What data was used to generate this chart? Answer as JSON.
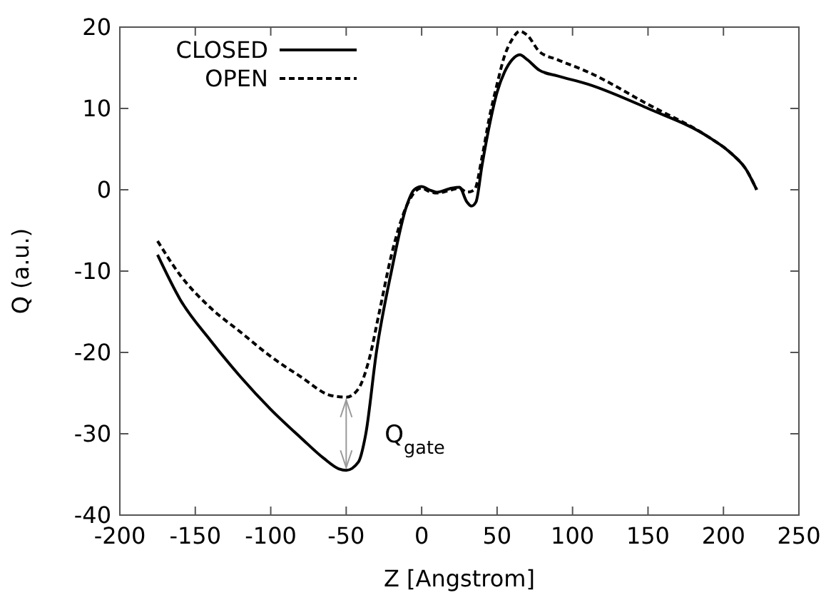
{
  "chart_data": {
    "type": "line",
    "xlabel": "Z [Angstrom]",
    "ylabel": "Q (a.u.)",
    "xlim": [
      -200,
      250
    ],
    "ylim": [
      -40,
      20
    ],
    "xticks": [
      -200,
      -150,
      -100,
      -50,
      0,
      50,
      100,
      150,
      200,
      250
    ],
    "yticks": [
      -40,
      -30,
      -20,
      -10,
      0,
      10,
      20
    ],
    "legend": "top left",
    "grid": false,
    "annotations": [
      "Q$_{gate}$"
    ],
    "series": [
      {
        "name": "CLOSED",
        "color": "#000000",
        "line_style": "solid",
        "x": [
          -175,
          -160,
          -140,
          -120,
          -100,
          -80,
          -65,
          -55,
          -50,
          -42,
          -37,
          -30,
          -20,
          -10,
          -5,
          0,
          5,
          10,
          20,
          25,
          30,
          33,
          36,
          40,
          45,
          50,
          55,
          60,
          65,
          70,
          78,
          90,
          110,
          150,
          190,
          205,
          215,
          222
        ],
        "values": [
          -8,
          -13.5,
          -18.5,
          -23,
          -27,
          -30.5,
          -33,
          -34.3,
          -34.5,
          -33.5,
          -30,
          -20,
          -10,
          -2,
          0,
          0.4,
          0,
          -0.3,
          0.2,
          0.3,
          -1.5,
          -2,
          -1.5,
          3,
          8,
          12,
          14.5,
          16,
          16.6,
          16,
          14.7,
          14,
          13,
          10,
          6.5,
          4.5,
          2.5,
          0
        ]
      },
      {
        "name": "OPEN",
        "color": "#000000",
        "line_style": "dashed",
        "x": [
          -175,
          -160,
          -140,
          -120,
          -100,
          -80,
          -60,
          -50,
          -42,
          -35,
          -28,
          -20,
          -10,
          -3,
          0,
          5,
          10,
          20,
          25,
          30,
          35,
          40,
          45,
          50,
          55,
          60,
          65,
          70,
          78,
          90,
          110,
          150,
          190,
          205,
          215,
          222
        ],
        "values": [
          -6.3,
          -10.5,
          -14.5,
          -17.5,
          -20.5,
          -23,
          -25.3,
          -25.5,
          -24.5,
          -21,
          -15,
          -8,
          -2,
          0,
          0.2,
          -0.2,
          -0.4,
          0,
          0.2,
          -0.3,
          0,
          4,
          9,
          13,
          16.5,
          18.5,
          19.5,
          19,
          17,
          16,
          14.5,
          10.5,
          6.5,
          4.5,
          2.5,
          0
        ]
      }
    ]
  }
}
